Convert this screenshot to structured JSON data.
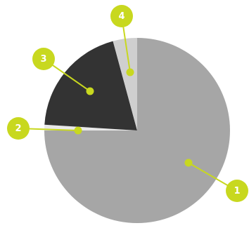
{
  "chart_data": {
    "type": "pie",
    "slices": [
      {
        "label": "1",
        "value": 75.0,
        "color": "#a6a6a6"
      },
      {
        "label": "2",
        "value": 1.0,
        "color": "#e9e9e9"
      },
      {
        "label": "3",
        "value": 19.8,
        "color": "#333333"
      },
      {
        "label": "4",
        "value": 4.2,
        "color": "#cfcfcf"
      }
    ],
    "accent_color": "#c8d81f",
    "start": "12 o'clock",
    "direction": "clockwise",
    "legend": "none"
  }
}
